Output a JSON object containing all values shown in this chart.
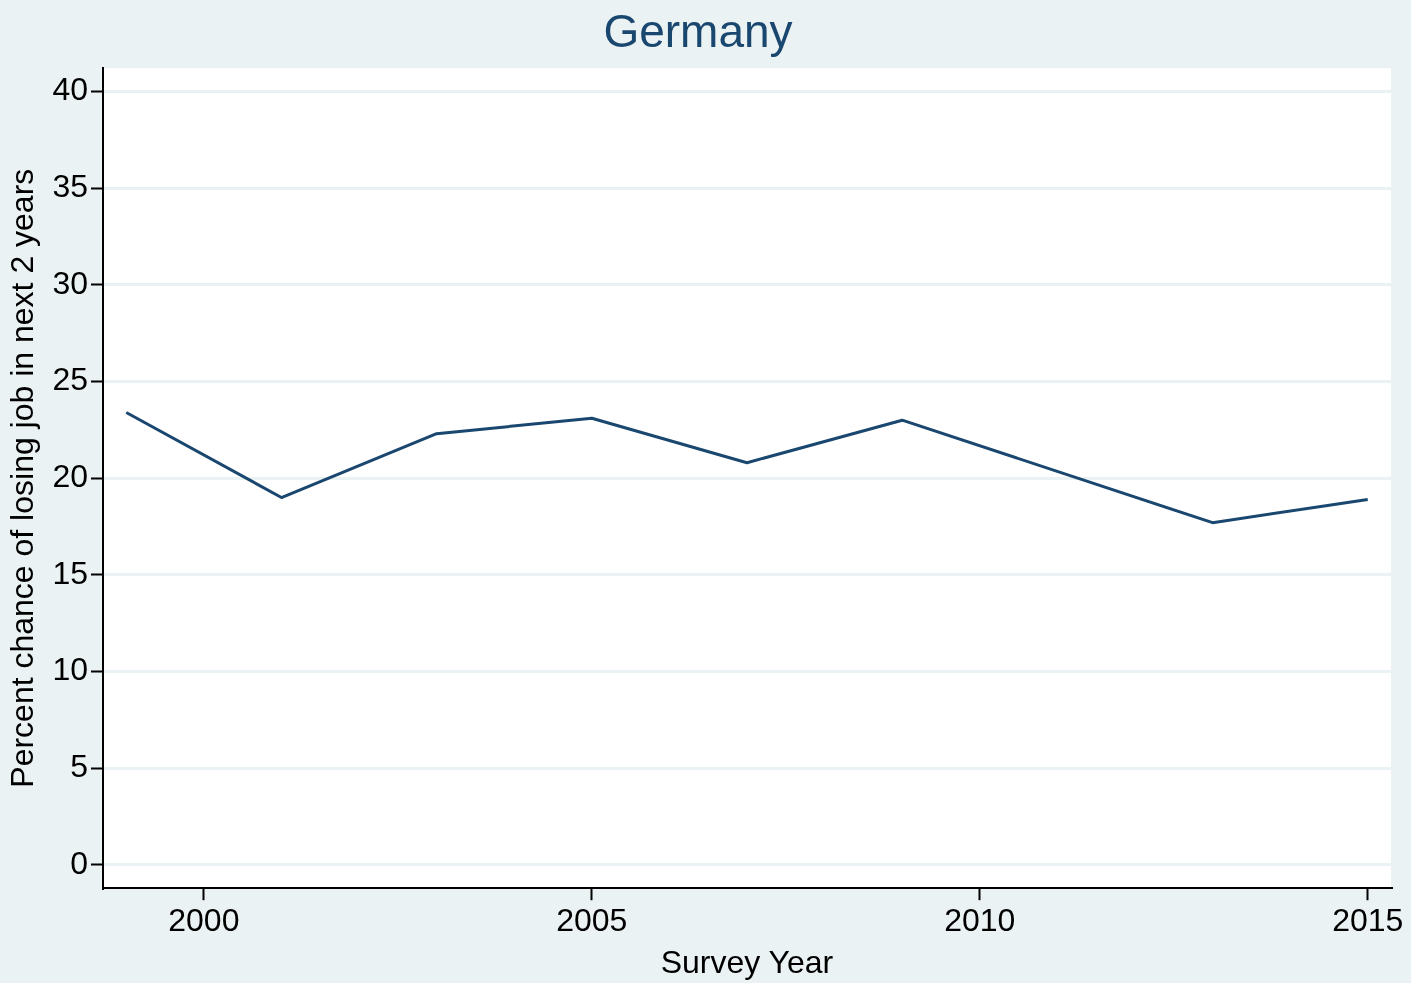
{
  "chart_data": {
    "type": "line",
    "title": "Germany",
    "xlabel": "Survey Year",
    "ylabel": "Percent chance of losing job in next 2 years",
    "x": [
      1999,
      2001,
      2003,
      2005,
      2007,
      2009,
      2013,
      2015
    ],
    "series": [
      {
        "color": "#1a476f",
        "values": [
          23.4,
          19.0,
          22.3,
          23.1,
          20.8,
          23.0,
          17.7,
          18.9
        ]
      }
    ],
    "xlim": [
      1998.7,
      2015.3
    ],
    "xticks": [
      2000,
      2005,
      2010,
      2015
    ],
    "ylim": [
      -1.2,
      41.2
    ],
    "yticks": [
      0,
      5,
      10,
      15,
      20,
      25,
      30,
      35,
      40
    ],
    "grid": "y",
    "legend": false,
    "marker": "none",
    "line_style": "solid"
  }
}
